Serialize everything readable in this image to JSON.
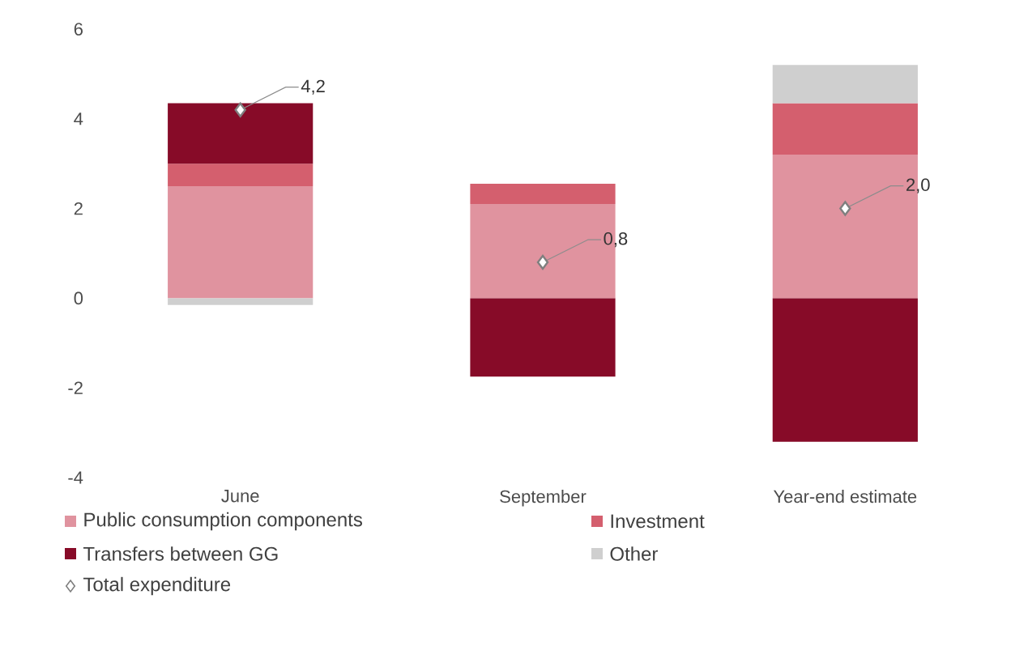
{
  "chart_data": {
    "type": "bar",
    "stacked": true,
    "categories": [
      "June",
      "September",
      "Year-end estimate"
    ],
    "series": [
      {
        "name": "Public consumption components",
        "color": "#e0939f",
        "values": [
          2.5,
          2.1,
          3.2
        ]
      },
      {
        "name": "Investment",
        "color": "#d45f6e",
        "values": [
          0.5,
          0.45,
          1.15
        ]
      },
      {
        "name": "Transfers between GG",
        "color": "#870b28",
        "values": [
          1.35,
          -1.75,
          -3.2
        ]
      },
      {
        "name": "Other",
        "color": "#cfcfcf",
        "values": [
          -0.15,
          0,
          0.85
        ]
      },
      {
        "name": "Total expenditure",
        "type": "scatter",
        "marker": "diamond",
        "color": "#7f7f7f",
        "values": [
          4.2,
          0.8,
          2.0
        ],
        "value_labels": [
          "4,2",
          "0,8",
          "2,0"
        ]
      }
    ],
    "ylim": [
      -4,
      6
    ],
    "yticks": [
      -4,
      -2,
      0,
      2,
      4,
      6
    ],
    "grid": false,
    "legend": "bottom"
  }
}
